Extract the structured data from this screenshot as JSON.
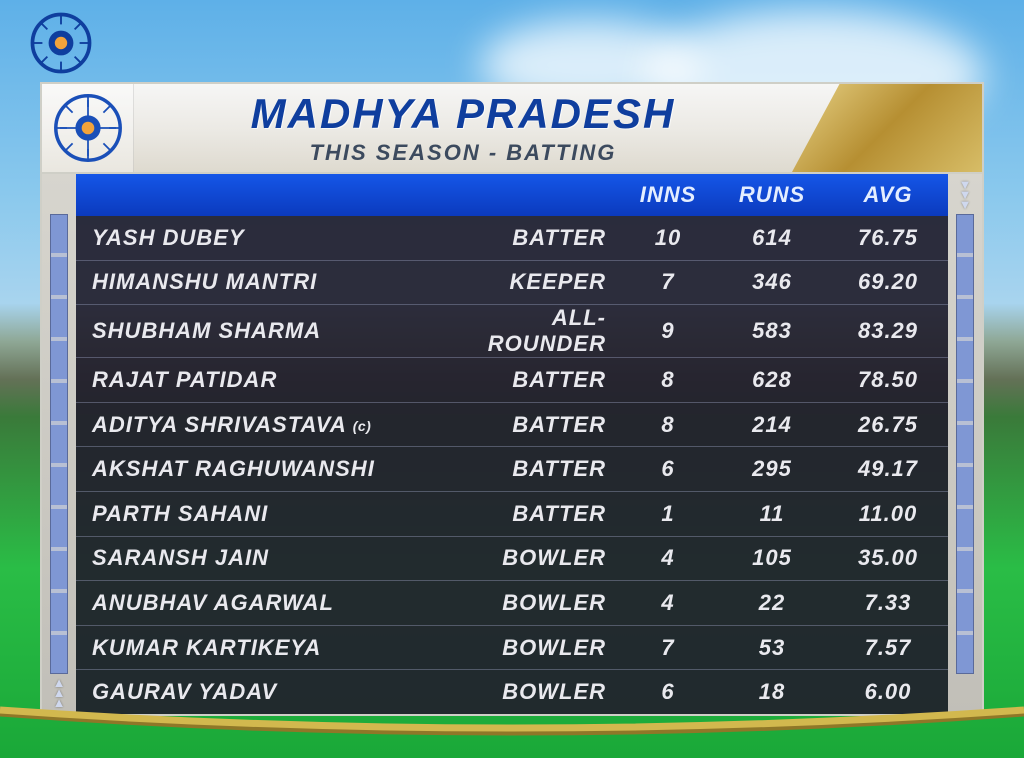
{
  "background": {
    "sky_top": "#5eb0e8",
    "sky_mid": "#a8d4ee",
    "grass_top": "#3a7a3a",
    "grass_bottom": "#1aa838",
    "rope_color": "#d2b84e"
  },
  "logo": {
    "primary_color": "#0f3e9e",
    "accent_color": "#f3a33b"
  },
  "header": {
    "title": "MADHYA PRADESH",
    "subtitle": "THIS SEASON - BATTING",
    "title_color": "#0f3e9e",
    "subtitle_color": "#3c4a5e",
    "title_fontsize": 42,
    "subtitle_fontsize": 22,
    "header_bg_top": "#f6f6f5",
    "header_bg_bottom": "#dedacf",
    "trophy_gold_light": "#e8d388",
    "trophy_gold_dark": "#b68f32"
  },
  "table": {
    "header_bg_top": "#1556e8",
    "header_bg_bottom": "#0b3abe",
    "header_text_color": "#e4eeff",
    "row_text_color": "#e9e9ee",
    "row_divider_color": "#7c829b",
    "body_bg": "#221e2d",
    "pillar_bg_light": "#d7d5ce",
    "pillar_segment": "#7f97d4",
    "columns": {
      "name": "",
      "role": "",
      "inns": "INNS",
      "runs": "RUNS",
      "avg": "AVG"
    },
    "rows": [
      {
        "name": "YASH DUBEY",
        "captain": false,
        "role": "BATTER",
        "inns": "10",
        "runs": "614",
        "avg": "76.75"
      },
      {
        "name": "HIMANSHU MANTRI",
        "captain": false,
        "role": "KEEPER",
        "inns": "7",
        "runs": "346",
        "avg": "69.20"
      },
      {
        "name": "SHUBHAM SHARMA",
        "captain": false,
        "role": "ALL-ROUNDER",
        "inns": "9",
        "runs": "583",
        "avg": "83.29"
      },
      {
        "name": "RAJAT PATIDAR",
        "captain": false,
        "role": "BATTER",
        "inns": "8",
        "runs": "628",
        "avg": "78.50"
      },
      {
        "name": "ADITYA SHRIVASTAVA",
        "captain": true,
        "role": "BATTER",
        "inns": "8",
        "runs": "214",
        "avg": "26.75"
      },
      {
        "name": "AKSHAT RAGHUWANSHI",
        "captain": false,
        "role": "BATTER",
        "inns": "6",
        "runs": "295",
        "avg": "49.17"
      },
      {
        "name": "PARTH SAHANI",
        "captain": false,
        "role": "BATTER",
        "inns": "1",
        "runs": "11",
        "avg": "11.00"
      },
      {
        "name": "SARANSH JAIN",
        "captain": false,
        "role": "BOWLER",
        "inns": "4",
        "runs": "105",
        "avg": "35.00"
      },
      {
        "name": "ANUBHAV AGARWAL",
        "captain": false,
        "role": "BOWLER",
        "inns": "4",
        "runs": "22",
        "avg": "7.33"
      },
      {
        "name": "KUMAR KARTIKEYA",
        "captain": false,
        "role": "BOWLER",
        "inns": "7",
        "runs": "53",
        "avg": "7.57"
      },
      {
        "name": "GAURAV YADAV",
        "captain": false,
        "role": "BOWLER",
        "inns": "6",
        "runs": "18",
        "avg": "6.00"
      }
    ],
    "captain_tag": "(c)"
  }
}
